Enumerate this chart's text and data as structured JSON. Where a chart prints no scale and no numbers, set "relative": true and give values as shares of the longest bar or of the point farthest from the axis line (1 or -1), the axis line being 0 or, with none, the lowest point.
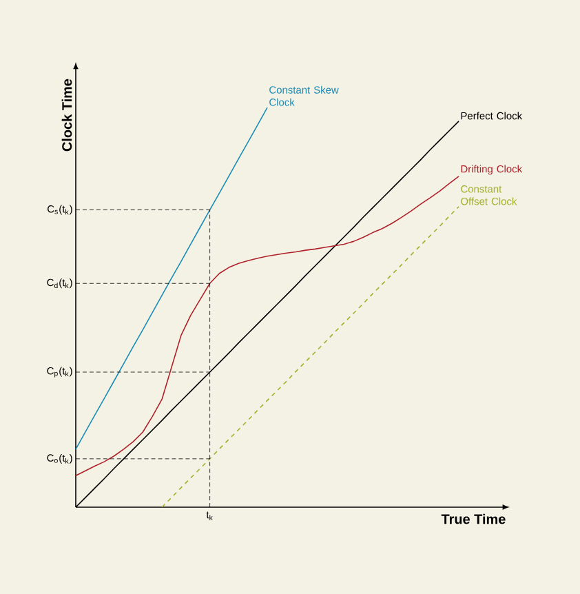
{
  "chart_data": {
    "type": "line",
    "relative": true,
    "xlabel": "True Time",
    "ylabel": "Clock Time",
    "categories": [
      null,
      null,
      null,
      null,
      null,
      null,
      null,
      null,
      null,
      null,
      null,
      null,
      null,
      null,
      null,
      null,
      null,
      null,
      null,
      null,
      null,
      null,
      null,
      null,
      null,
      null,
      null,
      null,
      null,
      null,
      null,
      null,
      null,
      null,
      null,
      null,
      null,
      null,
      null,
      null,
      null
    ],
    "series": [
      {
        "name": "Constant Skew Clock",
        "color": "#1a8cb8",
        "values": [
          0.145,
          0.188,
          0.231,
          0.273,
          0.316,
          0.359,
          0.402,
          0.444,
          0.487,
          0.53,
          0.573,
          0.615,
          0.658,
          0.701,
          0.744,
          0.786,
          0.829,
          0.872,
          0.914,
          0.957,
          1.0,
          null,
          null,
          null,
          null,
          null,
          null,
          null,
          null,
          null,
          null,
          null,
          null,
          null,
          null,
          null,
          null,
          null,
          null,
          null,
          null
        ]
      },
      {
        "name": "Perfect Clock",
        "color": "#000000",
        "values": [
          0,
          0.024,
          0.048,
          0.072,
          0.097,
          0.121,
          0.145,
          0.169,
          0.193,
          0.217,
          0.242,
          0.266,
          0.29,
          0.314,
          0.338,
          0.362,
          0.386,
          0.411,
          0.435,
          0.459,
          0.483,
          0.507,
          0.531,
          0.555,
          0.58,
          0.604,
          0.628,
          0.652,
          0.676,
          0.7,
          0.725,
          0.749,
          0.773,
          0.797,
          0.821,
          0.845,
          0.869,
          0.894,
          0.918,
          0.942,
          0.966
        ]
      },
      {
        "name": "Drifting Clock",
        "color": "#b0202a",
        "values": [
          0.079,
          0.091,
          0.103,
          0.114,
          0.128,
          0.145,
          0.164,
          0.188,
          0.227,
          0.27,
          0.35,
          0.43,
          0.48,
          0.52,
          0.56,
          0.585,
          0.6,
          0.61,
          0.617,
          0.623,
          0.628,
          0.632,
          0.636,
          0.639,
          0.643,
          0.646,
          0.65,
          0.654,
          0.658,
          0.665,
          0.675,
          0.687,
          0.697,
          0.71,
          0.725,
          0.741,
          0.758,
          0.774,
          0.791,
          0.81,
          0.828
        ]
      },
      {
        "name": "Constant Offset Clock",
        "color": "#a0b02a",
        "line_style": "dashed",
        "values": [
          null,
          null,
          null,
          null,
          null,
          null,
          null,
          null,
          null,
          0,
          0.024,
          0.049,
          0.073,
          0.097,
          0.121,
          0.146,
          0.17,
          0.194,
          0.218,
          0.243,
          0.267,
          0.291,
          0.315,
          0.34,
          0.364,
          0.388,
          0.412,
          0.437,
          0.461,
          0.485,
          0.509,
          0.534,
          0.558,
          0.582,
          0.606,
          0.631,
          0.655,
          0.679,
          0.703,
          0.728,
          0.752
        ]
      }
    ],
    "annotations": [
      "C$_{s}$(t$_{k}$)",
      "C$_{d}$(t$_{k}$)",
      "C$_{p}$(t$_{k}$)",
      "C$_{o}$(t$_{k}$)",
      "t$_{k}$"
    ]
  }
}
